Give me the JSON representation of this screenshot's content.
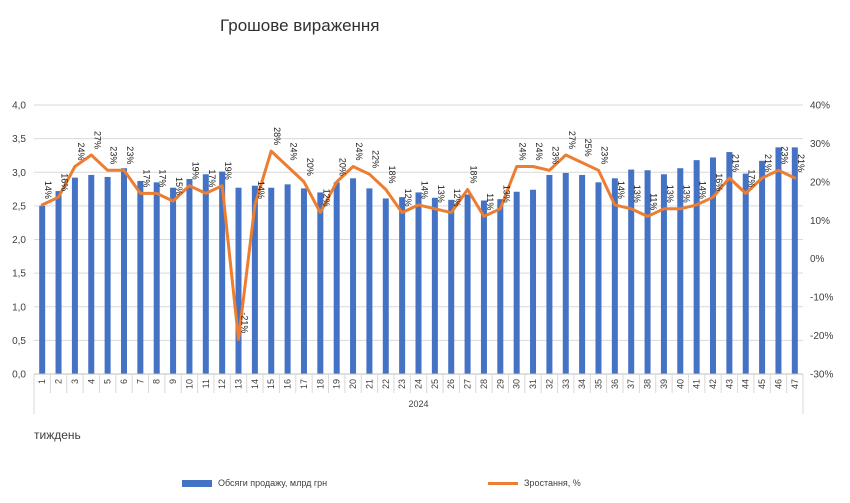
{
  "chart_data": {
    "type": "bar+line",
    "title": "Грошове вираження",
    "xlabel": "тиждень",
    "group_label": "2024",
    "categories": [
      "1",
      "2",
      "3",
      "4",
      "5",
      "6",
      "7",
      "8",
      "9",
      "10",
      "11",
      "12",
      "13",
      "14",
      "15",
      "16",
      "17",
      "18",
      "19",
      "20",
      "21",
      "22",
      "23",
      "24",
      "25",
      "26",
      "27",
      "28",
      "29",
      "30",
      "31",
      "32",
      "33",
      "34",
      "35",
      "36",
      "37",
      "38",
      "39",
      "40",
      "41",
      "42",
      "43",
      "44",
      "45",
      "46",
      "47"
    ],
    "y_left": {
      "ylim": [
        0,
        4
      ],
      "ticks": [
        "0,0",
        "0,5",
        "1,0",
        "1,5",
        "2,0",
        "2,5",
        "3,0",
        "3,5",
        "4,0"
      ]
    },
    "y_right": {
      "ylim": [
        -30,
        40
      ],
      "ticks": [
        "-30%",
        "-20%",
        "-10%",
        "0%",
        "10%",
        "20%",
        "30%",
        "40%"
      ]
    },
    "series": [
      {
        "name": "Обсяги продажу, млрд грн",
        "axis": "left",
        "color": "#4472C4",
        "values": [
          2.5,
          2.72,
          2.92,
          2.96,
          2.93,
          3.06,
          2.87,
          2.85,
          2.77,
          2.9,
          2.97,
          3.01,
          2.77,
          2.8,
          2.77,
          2.82,
          2.76,
          2.7,
          2.85,
          2.91,
          2.76,
          2.61,
          2.63,
          2.7,
          2.62,
          2.59,
          2.67,
          2.58,
          2.6,
          2.71,
          2.74,
          2.96,
          2.99,
          2.96,
          2.85,
          2.91,
          3.04,
          3.03,
          2.97,
          3.06,
          3.18,
          3.22,
          3.3,
          2.98,
          3.17,
          3.37,
          3.37
        ]
      },
      {
        "name": "Зростання, %",
        "axis": "right",
        "color": "#ED7D31",
        "values": [
          14,
          16,
          24,
          27,
          23,
          23,
          17,
          17,
          15,
          19,
          17,
          19,
          -21,
          14,
          28,
          24,
          20,
          12,
          20,
          24,
          22,
          18,
          12,
          14,
          13,
          12,
          18,
          11,
          13,
          24,
          24,
          23,
          27,
          25,
          23,
          14,
          13,
          11,
          13,
          13,
          14,
          16,
          21,
          17,
          21,
          23,
          21
        ]
      }
    ],
    "data_labels": [
      "14%",
      "16%",
      "24%",
      "27%",
      "23%",
      "23%",
      "17%",
      "17%",
      "15%",
      "19%",
      "17%",
      "19%",
      "-21%",
      "14%",
      "28%",
      "24%",
      "20%",
      "12%",
      "20%",
      "24%",
      "22%",
      "18%",
      "12%",
      "14%",
      "13%",
      "12%",
      "18%",
      "11%",
      "13%",
      "24%",
      "24%",
      "23%",
      "27%",
      "25%",
      "23%",
      "14%",
      "13%",
      "11%",
      "13%",
      "13%",
      "14%",
      "16%",
      "21%",
      "17%",
      "21%",
      "23%",
      "21%"
    ],
    "legend_placement": "bottom",
    "grid": true
  }
}
